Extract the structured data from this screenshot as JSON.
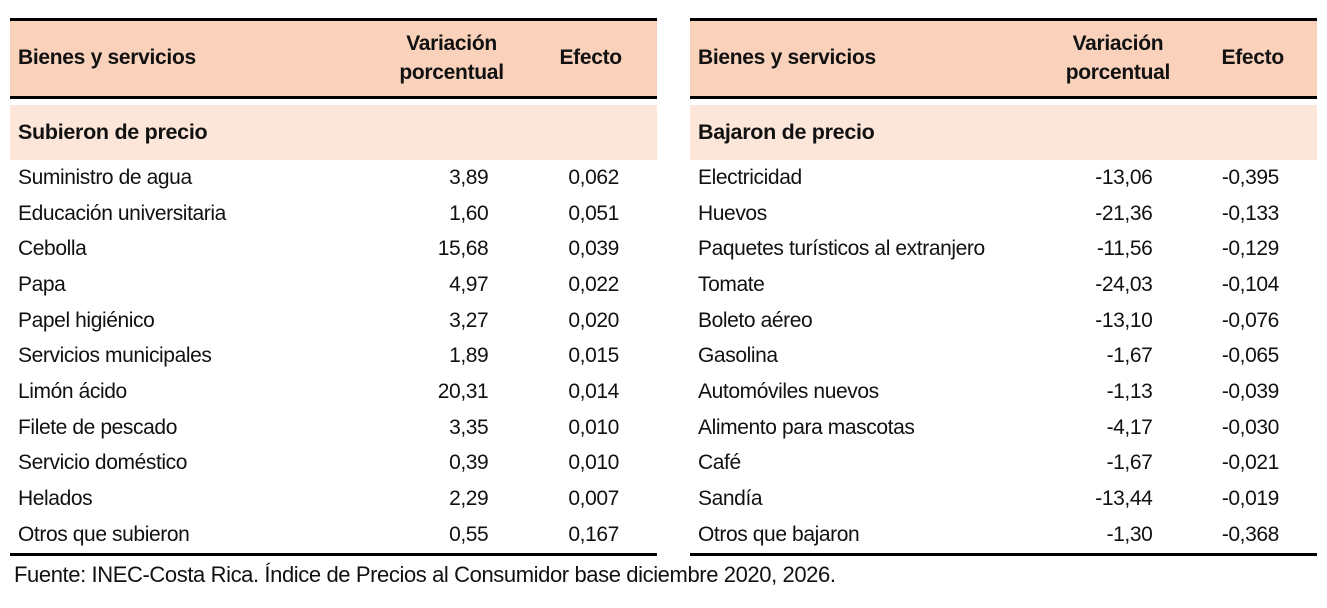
{
  "colors": {
    "header_bg": "#FAD2BC",
    "section_bg": "#FCE6D9",
    "border": "#000000",
    "text": "#111111"
  },
  "columns": {
    "goods": "Bienes y servicios",
    "variation": "Variación porcentual",
    "effect": "Efecto"
  },
  "tables": [
    {
      "section": "Subieron de precio",
      "rows": [
        {
          "name": "Suministro de agua",
          "variation": "3,89",
          "effect": "0,062"
        },
        {
          "name": "Educación universitaria",
          "variation": "1,60",
          "effect": "0,051"
        },
        {
          "name": "Cebolla",
          "variation": "15,68",
          "effect": "0,039"
        },
        {
          "name": "Papa",
          "variation": "4,97",
          "effect": "0,022"
        },
        {
          "name": "Papel higiénico",
          "variation": "3,27",
          "effect": "0,020"
        },
        {
          "name": "Servicios municipales",
          "variation": "1,89",
          "effect": "0,015"
        },
        {
          "name": "Limón ácido",
          "variation": "20,31",
          "effect": "0,014"
        },
        {
          "name": "Filete de pescado",
          "variation": "3,35",
          "effect": "0,010"
        },
        {
          "name": "Servicio doméstico",
          "variation": "0,39",
          "effect": "0,010"
        },
        {
          "name": "Helados",
          "variation": "2,29",
          "effect": "0,007"
        },
        {
          "name": "Otros que subieron",
          "variation": "0,55",
          "effect": "0,167"
        }
      ]
    },
    {
      "section": "Bajaron de precio",
      "rows": [
        {
          "name": "Electricidad",
          "variation": "-13,06",
          "effect": "-0,395"
        },
        {
          "name": "Huevos",
          "variation": "-21,36",
          "effect": "-0,133"
        },
        {
          "name": "Paquetes turísticos al extranjero",
          "variation": "-11,56",
          "effect": "-0,129"
        },
        {
          "name": "Tomate",
          "variation": "-24,03",
          "effect": "-0,104"
        },
        {
          "name": "Boleto aéreo",
          "variation": "-13,10",
          "effect": "-0,076"
        },
        {
          "name": "Gasolina",
          "variation": "-1,67",
          "effect": "-0,065"
        },
        {
          "name": "Automóviles nuevos",
          "variation": "-1,13",
          "effect": "-0,039"
        },
        {
          "name": "Alimento para mascotas",
          "variation": "-4,17",
          "effect": "-0,030"
        },
        {
          "name": "Café",
          "variation": "-1,67",
          "effect": "-0,021"
        },
        {
          "name": "Sandía",
          "variation": "-13,44",
          "effect": "-0,019"
        },
        {
          "name": "Otros que bajaron",
          "variation": "-1,30",
          "effect": "-0,368"
        }
      ]
    }
  ],
  "footer": {
    "source": "Fuente: INEC-Costa Rica. Índice de Precios al Consumidor base diciembre 2020, 2026."
  }
}
